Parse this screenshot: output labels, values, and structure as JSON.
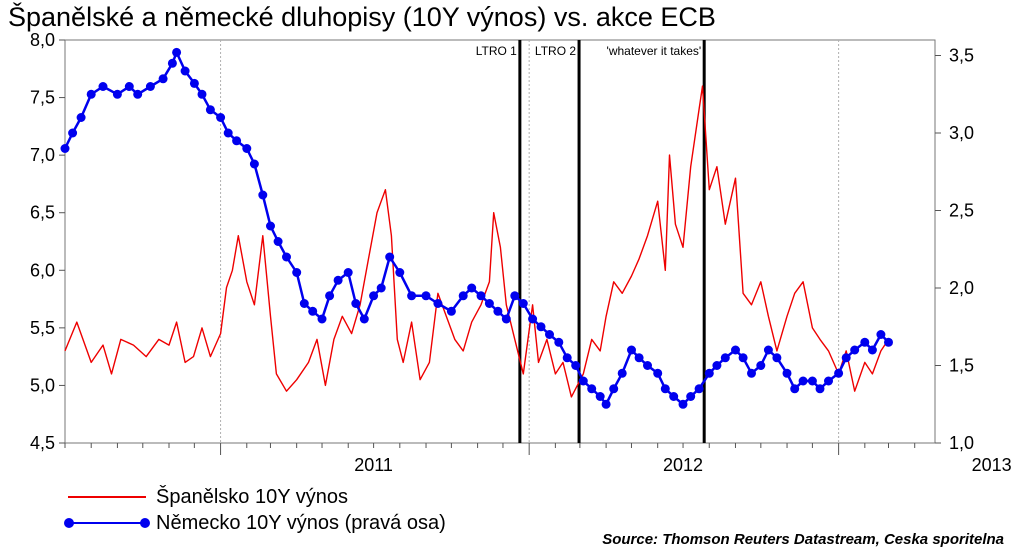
{
  "title": "Španělské a německé dluhopisy (10Y výnos) vs. akce ECB",
  "source": "Source: Thomson Reuters Datastream, Ceska sporitelna",
  "colors": {
    "spain": "#ee0000",
    "germany": "#0000ee",
    "events": "#000000",
    "grid": "#b0b0b0"
  },
  "chart_data": {
    "type": "line",
    "title": "Španělské a německé dluhopisy (10Y výnos) vs. akce ECB",
    "x_ticks": [
      "2011",
      "2012",
      "2013"
    ],
    "y_left": {
      "ticks": [
        "8,0",
        "7,5",
        "7,0",
        "6,5",
        "6,0",
        "5,5",
        "5,0",
        "4,5"
      ],
      "range": [
        4.5,
        8.0
      ]
    },
    "y_right": {
      "ticks": [
        "3,5",
        "3,0",
        "2,5",
        "2,0",
        "1,5",
        "1,0"
      ],
      "range": [
        1.0,
        3.6
      ]
    },
    "grid": true,
    "legend_position": "bottom-left",
    "events": [
      {
        "label": "LTRO 1",
        "date": "2011-12-21"
      },
      {
        "label": "LTRO 2",
        "date": "2012-02-29"
      },
      {
        "label": "'whatever it takes'",
        "date": "2012-07-26"
      }
    ],
    "series": [
      {
        "name": "Španělsko 10Y výnos",
        "axis": "left",
        "marker": "none",
        "points": [
          [
            "2010-07-01",
            5.3
          ],
          [
            "2010-07-15",
            5.55
          ],
          [
            "2010-08-01",
            5.2
          ],
          [
            "2010-08-15",
            5.35
          ],
          [
            "2010-08-25",
            5.1
          ],
          [
            "2010-09-05",
            5.4
          ],
          [
            "2010-09-20",
            5.35
          ],
          [
            "2010-10-05",
            5.25
          ],
          [
            "2010-10-20",
            5.4
          ],
          [
            "2010-11-01",
            5.35
          ],
          [
            "2010-11-10",
            5.55
          ],
          [
            "2010-11-20",
            5.2
          ],
          [
            "2010-11-30",
            5.25
          ],
          [
            "2010-12-10",
            5.5
          ],
          [
            "2010-12-20",
            5.25
          ],
          [
            "2011-01-01",
            5.45
          ],
          [
            "2011-01-08",
            5.85
          ],
          [
            "2011-01-15",
            6.0
          ],
          [
            "2011-01-22",
            6.3
          ],
          [
            "2011-02-01",
            5.9
          ],
          [
            "2011-02-10",
            5.7
          ],
          [
            "2011-02-20",
            6.3
          ],
          [
            "2011-03-01",
            5.6
          ],
          [
            "2011-03-08",
            5.1
          ],
          [
            "2011-03-20",
            4.95
          ],
          [
            "2011-04-01",
            5.05
          ],
          [
            "2011-04-15",
            5.2
          ],
          [
            "2011-04-25",
            5.4
          ],
          [
            "2011-05-05",
            5.0
          ],
          [
            "2011-05-15",
            5.4
          ],
          [
            "2011-05-25",
            5.6
          ],
          [
            "2011-06-05",
            5.45
          ],
          [
            "2011-06-15",
            5.7
          ],
          [
            "2011-06-25",
            6.1
          ],
          [
            "2011-07-05",
            6.5
          ],
          [
            "2011-07-15",
            6.7
          ],
          [
            "2011-07-22",
            6.3
          ],
          [
            "2011-07-29",
            5.4
          ],
          [
            "2011-08-05",
            5.2
          ],
          [
            "2011-08-15",
            5.55
          ],
          [
            "2011-08-25",
            5.05
          ],
          [
            "2011-09-05",
            5.2
          ],
          [
            "2011-09-15",
            5.8
          ],
          [
            "2011-09-25",
            5.6
          ],
          [
            "2011-10-05",
            5.4
          ],
          [
            "2011-10-15",
            5.3
          ],
          [
            "2011-10-25",
            5.55
          ],
          [
            "2011-11-05",
            5.7
          ],
          [
            "2011-11-15",
            5.9
          ],
          [
            "2011-11-20",
            6.5
          ],
          [
            "2011-11-28",
            6.2
          ],
          [
            "2011-12-05",
            5.7
          ],
          [
            "2011-12-15",
            5.4
          ],
          [
            "2011-12-25",
            5.1
          ],
          [
            "2012-01-05",
            5.7
          ],
          [
            "2012-01-12",
            5.2
          ],
          [
            "2012-01-22",
            5.4
          ],
          [
            "2012-02-01",
            5.1
          ],
          [
            "2012-02-10",
            5.2
          ],
          [
            "2012-02-20",
            4.9
          ],
          [
            "2012-03-05",
            5.1
          ],
          [
            "2012-03-15",
            5.4
          ],
          [
            "2012-03-25",
            5.3
          ],
          [
            "2012-04-01",
            5.6
          ],
          [
            "2012-04-10",
            5.9
          ],
          [
            "2012-04-20",
            5.8
          ],
          [
            "2012-05-01",
            5.95
          ],
          [
            "2012-05-10",
            6.1
          ],
          [
            "2012-05-20",
            6.3
          ],
          [
            "2012-06-01",
            6.6
          ],
          [
            "2012-06-10",
            6.0
          ],
          [
            "2012-06-15",
            7.0
          ],
          [
            "2012-06-22",
            6.4
          ],
          [
            "2012-07-01",
            6.2
          ],
          [
            "2012-07-10",
            6.9
          ],
          [
            "2012-07-20",
            7.4
          ],
          [
            "2012-07-24",
            7.6
          ],
          [
            "2012-08-01",
            6.7
          ],
          [
            "2012-08-10",
            6.9
          ],
          [
            "2012-08-20",
            6.4
          ],
          [
            "2012-09-01",
            6.8
          ],
          [
            "2012-09-10",
            5.8
          ],
          [
            "2012-09-20",
            5.7
          ],
          [
            "2012-10-01",
            5.9
          ],
          [
            "2012-10-10",
            5.6
          ],
          [
            "2012-10-20",
            5.3
          ],
          [
            "2012-11-01",
            5.6
          ],
          [
            "2012-11-10",
            5.8
          ],
          [
            "2012-11-20",
            5.9
          ],
          [
            "2012-12-01",
            5.5
          ],
          [
            "2012-12-10",
            5.4
          ],
          [
            "2012-12-20",
            5.3
          ],
          [
            "2013-01-01",
            5.1
          ],
          [
            "2013-01-10",
            5.3
          ],
          [
            "2013-01-20",
            4.95
          ],
          [
            "2013-02-01",
            5.2
          ],
          [
            "2013-02-10",
            5.1
          ],
          [
            "2013-02-20",
            5.3
          ],
          [
            "2013-03-01",
            5.4
          ],
          [
            "2013-03-05",
            5.35
          ]
        ]
      },
      {
        "name": "Německo 10Y výnos (pravá osa)",
        "axis": "right",
        "marker": "circle",
        "points": [
          [
            "2010-07-01",
            2.9
          ],
          [
            "2010-07-10",
            3.0
          ],
          [
            "2010-07-20",
            3.1
          ],
          [
            "2010-08-01",
            3.25
          ],
          [
            "2010-08-15",
            3.3
          ],
          [
            "2010-09-01",
            3.25
          ],
          [
            "2010-09-15",
            3.3
          ],
          [
            "2010-09-25",
            3.25
          ],
          [
            "2010-10-10",
            3.3
          ],
          [
            "2010-10-25",
            3.35
          ],
          [
            "2010-11-05",
            3.45
          ],
          [
            "2010-11-10",
            3.52
          ],
          [
            "2010-11-20",
            3.4
          ],
          [
            "2010-12-01",
            3.32
          ],
          [
            "2010-12-10",
            3.25
          ],
          [
            "2010-12-20",
            3.15
          ],
          [
            "2011-01-01",
            3.1
          ],
          [
            "2011-01-10",
            3.0
          ],
          [
            "2011-01-20",
            2.95
          ],
          [
            "2011-02-01",
            2.9
          ],
          [
            "2011-02-10",
            2.8
          ],
          [
            "2011-02-20",
            2.6
          ],
          [
            "2011-03-01",
            2.4
          ],
          [
            "2011-03-10",
            2.3
          ],
          [
            "2011-03-20",
            2.2
          ],
          [
            "2011-04-01",
            2.1
          ],
          [
            "2011-04-10",
            1.9
          ],
          [
            "2011-04-20",
            1.85
          ],
          [
            "2011-05-01",
            1.8
          ],
          [
            "2011-05-10",
            1.95
          ],
          [
            "2011-05-20",
            2.05
          ],
          [
            "2011-06-01",
            2.1
          ],
          [
            "2011-06-10",
            1.9
          ],
          [
            "2011-06-20",
            1.8
          ],
          [
            "2011-07-01",
            1.95
          ],
          [
            "2011-07-10",
            2.0
          ],
          [
            "2011-07-20",
            2.2
          ],
          [
            "2011-08-01",
            2.1
          ],
          [
            "2011-08-15",
            1.95
          ],
          [
            "2011-09-01",
            1.95
          ],
          [
            "2011-09-15",
            1.9
          ],
          [
            "2011-10-01",
            1.85
          ],
          [
            "2011-10-15",
            1.95
          ],
          [
            "2011-10-25",
            2.0
          ],
          [
            "2011-11-05",
            1.95
          ],
          [
            "2011-11-15",
            1.9
          ],
          [
            "2011-11-25",
            1.85
          ],
          [
            "2011-12-05",
            1.8
          ],
          [
            "2011-12-15",
            1.95
          ],
          [
            "2011-12-25",
            1.9
          ],
          [
            "2012-01-05",
            1.8
          ],
          [
            "2012-01-15",
            1.75
          ],
          [
            "2012-01-25",
            1.7
          ],
          [
            "2012-02-05",
            1.65
          ],
          [
            "2012-02-15",
            1.55
          ],
          [
            "2012-02-25",
            1.5
          ],
          [
            "2012-03-05",
            1.4
          ],
          [
            "2012-03-15",
            1.35
          ],
          [
            "2012-03-25",
            1.3
          ],
          [
            "2012-04-01",
            1.25
          ],
          [
            "2012-04-10",
            1.35
          ],
          [
            "2012-04-20",
            1.45
          ],
          [
            "2012-05-01",
            1.6
          ],
          [
            "2012-05-10",
            1.55
          ],
          [
            "2012-05-20",
            1.5
          ],
          [
            "2012-06-01",
            1.45
          ],
          [
            "2012-06-10",
            1.35
          ],
          [
            "2012-06-20",
            1.3
          ],
          [
            "2012-07-01",
            1.25
          ],
          [
            "2012-07-10",
            1.3
          ],
          [
            "2012-07-20",
            1.35
          ],
          [
            "2012-08-01",
            1.45
          ],
          [
            "2012-08-10",
            1.5
          ],
          [
            "2012-08-20",
            1.55
          ],
          [
            "2012-09-01",
            1.6
          ],
          [
            "2012-09-10",
            1.55
          ],
          [
            "2012-09-20",
            1.45
          ],
          [
            "2012-10-01",
            1.5
          ],
          [
            "2012-10-10",
            1.6
          ],
          [
            "2012-10-20",
            1.55
          ],
          [
            "2012-11-01",
            1.45
          ],
          [
            "2012-11-10",
            1.35
          ],
          [
            "2012-11-20",
            1.4
          ],
          [
            "2012-12-01",
            1.4
          ],
          [
            "2012-12-10",
            1.35
          ],
          [
            "2012-12-20",
            1.4
          ],
          [
            "2013-01-01",
            1.45
          ],
          [
            "2013-01-10",
            1.55
          ],
          [
            "2013-01-20",
            1.6
          ],
          [
            "2013-02-01",
            1.65
          ],
          [
            "2013-02-10",
            1.6
          ],
          [
            "2013-02-20",
            1.7
          ],
          [
            "2013-03-01",
            1.65
          ]
        ]
      }
    ]
  }
}
